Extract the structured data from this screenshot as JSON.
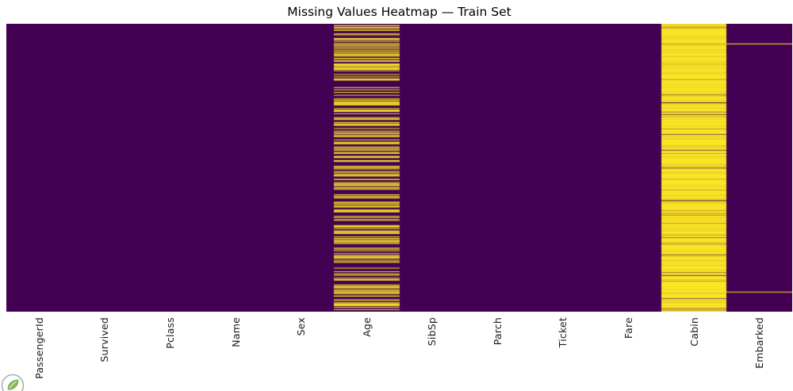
{
  "chart_data": {
    "type": "heatmap",
    "title": "Missing Values Heatmap — Train Set",
    "columns": [
      "PassengerId",
      "Survived",
      "Pclass",
      "Name",
      "Sex",
      "Age",
      "SibSp",
      "Parch",
      "Ticket",
      "Fare",
      "Cabin",
      "Embarked"
    ],
    "n_rows": 891,
    "xtick_rotation": 90,
    "ytick_labels": "none",
    "colorbar": false,
    "grid": false,
    "value_colors": {
      "present": "#440154",
      "missing": "#fde725"
    },
    "missing_counts_estimated": {
      "PassengerId": 0,
      "Survived": 0,
      "Pclass": 0,
      "Name": 0,
      "Sex": 0,
      "Age": 177,
      "SibSp": 0,
      "Parch": 0,
      "Ticket": 0,
      "Fare": 0,
      "Cabin": 687,
      "Embarked": 2
    },
    "embarked_missing_rows": [
      61,
      829
    ]
  },
  "icons": {
    "watermark": "leaf-logo-badge"
  }
}
